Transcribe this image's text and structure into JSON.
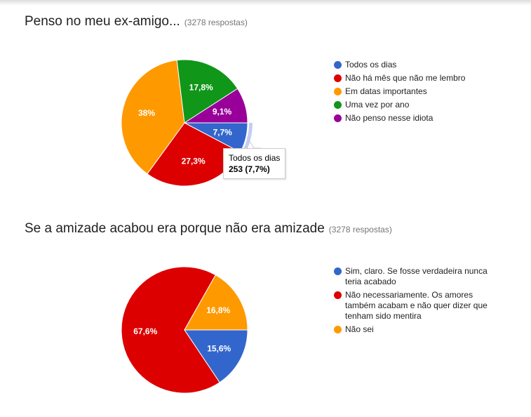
{
  "cards": [
    {
      "title": "Penso no meu ex-amigo...",
      "count": "(3278 respostas)",
      "legend": [
        {
          "label": "Todos os dias",
          "color": "#3366cc"
        },
        {
          "label": "Não há mês que não me lembro",
          "color": "#dc0000"
        },
        {
          "label": "Em datas importantes",
          "color": "#ff9900"
        },
        {
          "label": "Uma vez por ano",
          "color": "#109618"
        },
        {
          "label": "Não penso nesse idiota",
          "color": "#990099"
        }
      ],
      "tooltip": {
        "label": "Todos os dias",
        "value": "253 (7,7%)"
      }
    },
    {
      "title": "Se a amizade acabou era porque não era amizade",
      "count": "(3278 respostas)",
      "legend": [
        {
          "label": "Sim, claro. Se fosse verdadeira nunca teria acabado",
          "color": "#3366cc"
        },
        {
          "label": "Não necessariamente. Os amores também acabam e não quer dizer que tenham sido mentira",
          "color": "#dc0000"
        },
        {
          "label": "Não sei",
          "color": "#ff9900"
        }
      ]
    }
  ],
  "chart_data": [
    {
      "type": "pie",
      "title": "Penso no meu ex-amigo...",
      "subtitle": "(3278 respostas)",
      "categories": [
        "Todos os dias",
        "Não há mês que não me lembro",
        "Em datas importantes",
        "Uma vez por ano",
        "Não penso nesse idiota"
      ],
      "values": [
        7.7,
        27.3,
        38.0,
        17.8,
        9.1
      ],
      "labels": [
        "7,7%",
        "27,3%",
        "38%",
        "17,8%",
        "9,1%"
      ],
      "colors": [
        "#3366cc",
        "#dc0000",
        "#ff9900",
        "#109618",
        "#990099"
      ],
      "legend_position": "right",
      "highlighted": {
        "category": "Todos os dias",
        "count": 253,
        "percent": "7,7%"
      }
    },
    {
      "type": "pie",
      "title": "Se a amizade acabou era porque não era amizade",
      "subtitle": "(3278 respostas)",
      "categories": [
        "Sim, claro. Se fosse verdadeira nunca teria acabado",
        "Não necessariamente. Os amores também acabam e não quer dizer que tenham sido mentira",
        "Não sei"
      ],
      "values": [
        15.6,
        67.6,
        16.8
      ],
      "labels": [
        "15,6%",
        "67,6%",
        "16,8%"
      ],
      "colors": [
        "#3366cc",
        "#dc0000",
        "#ff9900"
      ],
      "legend_position": "right"
    }
  ]
}
